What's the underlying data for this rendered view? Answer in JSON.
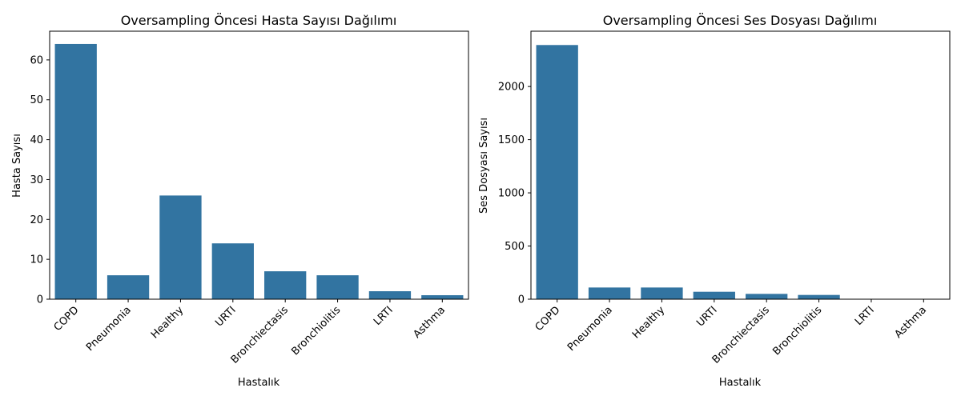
{
  "chart_data": [
    {
      "type": "bar",
      "title": "Oversampling Öncesi Hasta Sayısı Dağılımı",
      "xlabel": "Hastalık",
      "ylabel": "Hasta Sayısı",
      "categories": [
        "COPD",
        "Pneumonia",
        "Healthy",
        "URTI",
        "Bronchiectasis",
        "Bronchiolitis",
        "LRTI",
        "Asthma"
      ],
      "values": [
        64,
        6,
        26,
        14,
        7,
        6,
        2,
        1
      ],
      "ylim": [
        0,
        67.2
      ],
      "yticks": [
        0,
        10,
        20,
        30,
        40,
        50,
        60
      ],
      "grid": false,
      "color": "#3274a1"
    },
    {
      "type": "bar",
      "title": "Oversampling Öncesi Ses Dosyası Dağılımı",
      "xlabel": "Hastalık",
      "ylabel": "Ses Dosyası Sayısı",
      "categories": [
        "COPD",
        "Pneumonia",
        "Healthy",
        "URTI",
        "Bronchiectasis",
        "Bronchiolitis",
        "LRTI",
        "Asthma"
      ],
      "values": [
        2390,
        110,
        110,
        70,
        50,
        40,
        2,
        1
      ],
      "ylim": [
        0,
        2520
      ],
      "yticks": [
        0,
        500,
        1000,
        1500,
        2000
      ],
      "grid": false,
      "color": "#3274a1"
    }
  ]
}
